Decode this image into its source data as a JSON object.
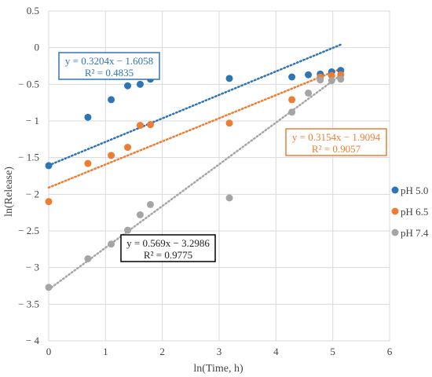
{
  "chart_data": {
    "type": "scatter",
    "xlabel": "ln(Time, h)",
    "ylabel": "ln(Release)",
    "xlim": [
      0,
      6
    ],
    "ylim": [
      -4,
      0.5
    ],
    "xticks": [
      0,
      1,
      2,
      3,
      4,
      5,
      6
    ],
    "yticks": [
      0.5,
      0,
      -0.5,
      -1,
      -1.5,
      -2,
      -2.5,
      -3,
      -3.5,
      -4
    ],
    "xtick_labels": [
      "0",
      "1",
      "2",
      "3",
      "4",
      "5",
      "6"
    ],
    "ytick_labels": [
      "0.5",
      "0",
      "− 0.5",
      "− 1",
      "− 1.5",
      "− 2",
      "− 2.5",
      "− 3",
      "− 3.5",
      "− 4"
    ],
    "grid": true,
    "legend_position": "right",
    "series": [
      {
        "name": "pH 5.0",
        "color": "#2e75b6",
        "points": [
          [
            0,
            -1.61
          ],
          [
            0.69,
            -0.95
          ],
          [
            1.1,
            -0.71
          ],
          [
            1.39,
            -0.52
          ],
          [
            1.61,
            -0.5
          ],
          [
            1.79,
            -0.43
          ],
          [
            3.18,
            -0.42
          ],
          [
            4.28,
            -0.4
          ],
          [
            4.57,
            -0.37
          ],
          [
            4.78,
            -0.36
          ],
          [
            4.98,
            -0.33
          ],
          [
            5.14,
            -0.31
          ]
        ],
        "trendline": {
          "slope": 0.3204,
          "intercept": -1.6058,
          "x_range": [
            0,
            5.14
          ]
        },
        "equation": "y = 0.3204x − 1.6058",
        "r2": "R² = 0.4835",
        "equation_border": "#2e75b6"
      },
      {
        "name": "pH 6.5",
        "color": "#ed7d31",
        "points": [
          [
            0,
            -2.1
          ],
          [
            0.69,
            -1.58
          ],
          [
            1.1,
            -1.47
          ],
          [
            1.39,
            -1.36
          ],
          [
            1.61,
            -1.06
          ],
          [
            1.79,
            -1.05
          ],
          [
            3.18,
            -1.03
          ],
          [
            4.28,
            -0.71
          ],
          [
            4.78,
            -0.4
          ],
          [
            4.98,
            -0.38
          ],
          [
            5.14,
            -0.37
          ]
        ],
        "trendline": {
          "slope": 0.3154,
          "intercept": -1.9094,
          "x_range": [
            0,
            5.14
          ]
        },
        "equation": "y = 0.3154x − 1.9094",
        "r2": "R² = 0.9057",
        "equation_border": "#ed7d31"
      },
      {
        "name": "pH 7.4",
        "color": "#a5a5a5",
        "points": [
          [
            0,
            -3.27
          ],
          [
            0.69,
            -2.88
          ],
          [
            1.1,
            -2.68
          ],
          [
            1.39,
            -2.49
          ],
          [
            1.61,
            -2.28
          ],
          [
            1.79,
            -2.14
          ],
          [
            3.18,
            -2.05
          ],
          [
            4.28,
            -0.88
          ],
          [
            4.57,
            -0.62
          ],
          [
            4.78,
            -0.44
          ],
          [
            4.98,
            -0.45
          ],
          [
            5.14,
            -0.43
          ]
        ],
        "trendline": {
          "slope": 0.569,
          "intercept": -3.2986,
          "x_range": [
            0,
            5.14
          ]
        },
        "equation": "y = 0.569x − 3.2986",
        "r2": "R² = 0.9775",
        "equation_border": "#000000"
      }
    ]
  }
}
